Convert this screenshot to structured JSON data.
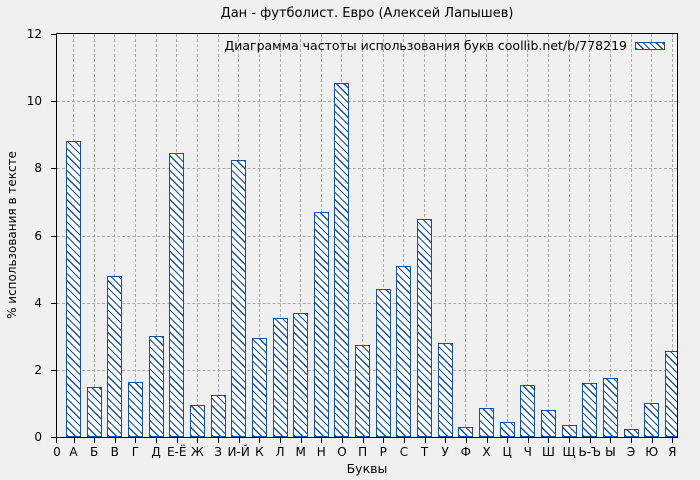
{
  "title": "Дан - футболист. Евро (Алексей Лапышев)",
  "legend": {
    "label": "Диаграмма частоты использования букв coollib.net/b/778219"
  },
  "axes": {
    "xlabel": "Буквы",
    "ylabel": "% использования в тексте",
    "origin_label": "0"
  },
  "colors": {
    "bar": "#1451a0",
    "background": "#f0f0f0",
    "grid": "#a9a9a9",
    "frame": "#000000"
  },
  "chart_data": {
    "type": "bar",
    "title": "Дан - футболист. Евро (Алексей Лапышев)",
    "legend_label": "Диаграмма частоты использования букв coollib.net/b/778219",
    "legend_position": "top-right-inside",
    "xlabel": "Буквы",
    "ylabel": "% использования в тексте",
    "ylim": [
      0,
      12
    ],
    "yticks": [
      0,
      2,
      4,
      6,
      8,
      10,
      12
    ],
    "grid": true,
    "bar_style": "blue diagonal hatch on white",
    "categories": [
      "А",
      "Б",
      "В",
      "Г",
      "Д",
      "Е-Ё",
      "Ж",
      "З",
      "И-Й",
      "К",
      "Л",
      "М",
      "Н",
      "О",
      "П",
      "Р",
      "С",
      "Т",
      "У",
      "Ф",
      "Х",
      "Ц",
      "Ч",
      "Ш",
      "Щ",
      "Ь-Ъ",
      "Ы",
      "Э",
      "Ю",
      "Я"
    ],
    "values": [
      8.8,
      1.5,
      4.8,
      1.65,
      3.0,
      8.45,
      0.95,
      1.25,
      8.25,
      2.95,
      3.55,
      3.7,
      6.7,
      10.55,
      2.75,
      4.4,
      5.1,
      6.5,
      2.8,
      0.3,
      0.85,
      0.45,
      1.55,
      0.8,
      0.35,
      1.6,
      1.75,
      0.25,
      1.0,
      2.55
    ]
  }
}
